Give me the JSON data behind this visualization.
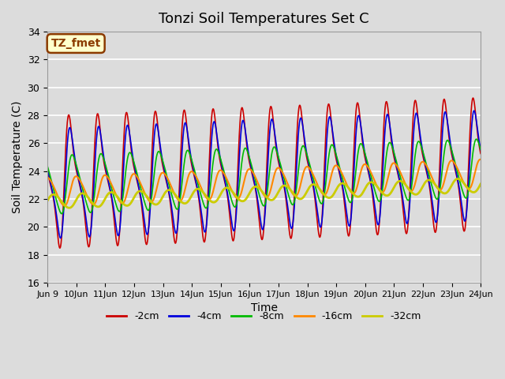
{
  "title": "Tonzi Soil Temperatures Set C",
  "xlabel": "Time",
  "ylabel": "Soil Temperature (C)",
  "ylim": [
    16,
    34
  ],
  "start_day": 9,
  "end_day": 24,
  "annotation_text": "TZ_fmet",
  "fig_facecolor": "#dcdcdc",
  "plot_facecolor": "#dcdcdc",
  "grid_color": "#ffffff",
  "line_colors": [
    "#cc0000",
    "#0000dd",
    "#00bb00",
    "#ff8800",
    "#cccc00"
  ],
  "line_labels": [
    "-2cm",
    "-4cm",
    "-8cm",
    "-16cm",
    "-32cm"
  ],
  "line_widths": [
    1.2,
    1.2,
    1.2,
    1.5,
    2.0
  ],
  "total_days": 15,
  "samples_per_day": 96,
  "depths": {
    "amplitudes": [
      5.8,
      4.8,
      2.5,
      1.2,
      0.55
    ],
    "phases": [
      0.0,
      0.18,
      0.55,
      1.3,
      2.5
    ],
    "mean_start": [
      23.2,
      23.1,
      23.0,
      22.5,
      21.8
    ],
    "mean_end": [
      24.5,
      24.4,
      24.2,
      23.8,
      23.0
    ],
    "peak_sharpness": [
      3.0,
      2.5,
      1.5,
      1.0,
      0.5
    ]
  },
  "tick_fontsize": 8,
  "label_fontsize": 10,
  "title_fontsize": 13
}
